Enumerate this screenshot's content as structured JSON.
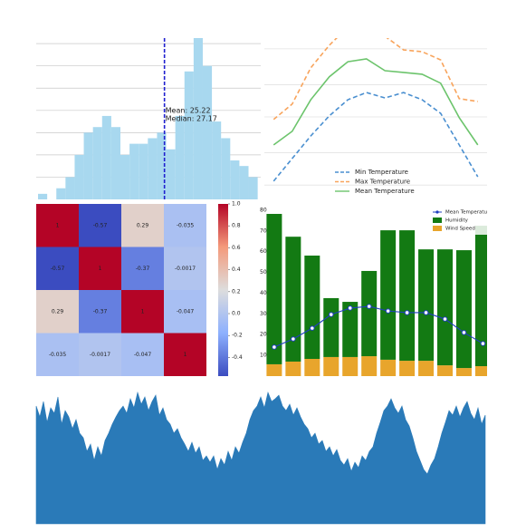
{
  "chart_data": [
    {
      "type": "histogram",
      "color": "#a8d8ef",
      "bins": [
        4.5,
        6,
        7.5,
        9,
        10.5,
        12,
        13.5,
        15,
        16.5,
        18,
        19.5,
        21,
        22.5,
        24,
        25.5,
        27,
        28.5,
        30,
        31.5,
        33,
        34.5,
        36,
        37.5,
        39,
        40.5
      ],
      "counts": [
        1,
        0,
        2,
        4,
        8,
        12,
        13,
        15,
        13,
        8,
        10,
        10,
        11,
        12,
        9,
        15,
        23,
        29,
        24,
        14,
        11,
        7,
        6,
        4
      ],
      "xlim": [
        4.2,
        41.0
      ],
      "ylim": [
        0,
        29
      ],
      "yticks": [
        4,
        8,
        12,
        16,
        20,
        24,
        28
      ],
      "grid": true,
      "mean": 25.22,
      "mean_color": "#1f1fcf",
      "annotations": [
        "Mean: 25.22",
        "Median: 27.17"
      ]
    },
    {
      "type": "line",
      "x": [
        1,
        2,
        3,
        4,
        5,
        6,
        7,
        8,
        9,
        10,
        11,
        12
      ],
      "xlim": [
        0.5,
        12.5
      ],
      "ylim": [
        0,
        45
      ],
      "yticks": [
        4,
        13,
        23,
        32,
        42
      ],
      "grid": true,
      "legend": "lower center",
      "series": [
        {
          "name": "Min Temperature",
          "color": "#4a8fd0",
          "style": "dashed",
          "values": [
            5.1,
            11.4,
            17.7,
            23.3,
            27.8,
            29.8,
            28.3,
            29.8,
            27.8,
            24.0,
            15.2,
            6.3
          ]
        },
        {
          "name": "Max Temperature",
          "color": "#f8a45c",
          "style": "dashed",
          "values": [
            22.3,
            26.6,
            36.7,
            43.0,
            48.1,
            50.6,
            45.5,
            41.7,
            41.2,
            38.9,
            28.1,
            27.3
          ]
        },
        {
          "name": "Mean Temperature",
          "color": "#6cc46c",
          "style": "solid",
          "values": [
            15.2,
            19.0,
            27.8,
            34.2,
            38.4,
            39.2,
            35.9,
            35.4,
            34.9,
            32.4,
            22.8,
            15.2
          ]
        }
      ]
    },
    {
      "type": "heatmap",
      "cmap": "coolwarm",
      "vlim": [
        -0.57,
        1
      ],
      "values": [
        [
          1,
          -0.57,
          0.29,
          -0.035
        ],
        [
          -0.57,
          1,
          -0.37,
          -0.0017
        ],
        [
          0.29,
          -0.37,
          1,
          -0.047
        ],
        [
          -0.035,
          -0.0017,
          -0.047,
          1
        ]
      ],
      "colorbar_ticks": [
        {
          "value": 1,
          "label": "1.0"
        },
        0.8,
        0.6,
        0.4,
        0.2,
        {
          "value": 0,
          "label": "0.0"
        },
        -0.2,
        -0.4
      ]
    },
    {
      "type": "combo",
      "x": [
        1,
        2,
        3,
        4,
        5,
        6,
        7,
        8,
        9,
        10,
        11,
        12
      ],
      "xlim": [
        0.48,
        12.6
      ],
      "ylim": [
        0,
        81.7
      ],
      "yticks": [
        10,
        20,
        30,
        40,
        50,
        60,
        70,
        80
      ],
      "legend": "upper right",
      "line": {
        "name": "Mean Temperature",
        "color": "#1f3fbf",
        "values": [
          14.0,
          17.9,
          23.1,
          29.7,
          32.8,
          33.6,
          31.4,
          30.6,
          30.6,
          27.5,
          21.0,
          15.7
        ]
      },
      "series": [
        {
          "name": "Humidity",
          "color": "#137a13",
          "values": [
            72.5,
            60.2,
            49.8,
            28.4,
            26.6,
            41.1,
            62.4,
            62.9,
            53.7,
            55.9,
            56.8,
            67.7
          ]
        },
        {
          "name": "Wind Speed",
          "color": "#e8a52c",
          "values": [
            5.7,
            7.0,
            8.3,
            9.2,
            9.2,
            9.6,
            7.9,
            7.4,
            7.4,
            5.2,
            3.9,
            4.8
          ]
        }
      ]
    },
    {
      "type": "area",
      "color": "#2a7ab8",
      "ylim": [
        0,
        160
      ],
      "values": [
        130,
        118,
        135,
        112,
        128,
        122,
        140,
        110,
        125,
        118,
        105,
        115,
        100,
        95,
        80,
        88,
        70,
        85,
        75,
        92,
        100,
        110,
        118,
        125,
        130,
        122,
        138,
        128,
        145,
        132,
        140,
        125,
        135,
        142,
        120,
        128,
        115,
        110,
        100,
        105,
        95,
        88,
        80,
        90,
        78,
        85,
        70,
        75,
        68,
        75,
        60,
        72,
        65,
        80,
        70,
        85,
        78,
        90,
        100,
        115,
        125,
        130,
        140,
        128,
        145,
        135,
        138,
        142,
        130,
        125,
        132,
        120,
        128,
        118,
        110,
        105,
        95,
        100,
        88,
        92,
        80,
        85,
        75,
        82,
        70,
        65,
        72,
        58,
        68,
        62,
        75,
        70,
        80,
        85,
        100,
        112,
        125,
        130,
        138,
        128,
        122,
        130,
        115,
        108,
        95,
        80,
        70,
        60,
        55,
        65,
        72,
        85,
        100,
        112,
        125,
        120,
        130,
        118,
        128,
        135,
        122,
        115,
        128,
        110,
        120
      ]
    }
  ]
}
